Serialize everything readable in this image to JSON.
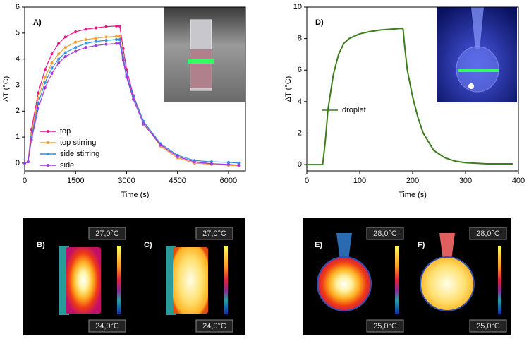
{
  "chart_data": [
    {
      "type": "line",
      "annotation": "A)",
      "x_label": "Time (s)",
      "y_label": "ΔT (°C)",
      "xlim": [
        0,
        6500
      ],
      "xticks": [
        0,
        1500,
        3000,
        4500,
        6000
      ],
      "ylim": [
        -0.3,
        6
      ],
      "yticks": [
        0,
        1,
        2,
        3,
        4,
        5,
        6
      ],
      "markers": true,
      "legend": "lower-left",
      "x": [
        0,
        100,
        200,
        400,
        600,
        800,
        1000,
        1200,
        1500,
        1800,
        2100,
        2400,
        2700,
        2800,
        2900,
        3000,
        3200,
        3500,
        4000,
        4500,
        5000,
        5500,
        6000,
        6300
      ],
      "series": [
        {
          "name": "top",
          "color": "#e8188c",
          "values": [
            0,
            0.05,
            1.3,
            2.7,
            3.6,
            4.2,
            4.6,
            4.85,
            5.05,
            5.15,
            5.2,
            5.25,
            5.27,
            5.27,
            4.4,
            3.6,
            2.6,
            1.6,
            0.7,
            0.25,
            0.05,
            -0.05,
            -0.08,
            -0.1
          ]
        },
        {
          "name": "top stirring",
          "color": "#f5a033",
          "values": [
            0,
            0.05,
            1.1,
            2.5,
            3.3,
            3.85,
            4.2,
            4.45,
            4.65,
            4.75,
            4.8,
            4.85,
            4.87,
            4.87,
            4.1,
            3.4,
            2.5,
            1.55,
            0.65,
            0.2,
            0,
            -0.05,
            -0.08,
            -0.1
          ]
        },
        {
          "name": "side stirring",
          "color": "#2f8fe0",
          "values": [
            0,
            0.05,
            1.0,
            2.3,
            3.1,
            3.65,
            4.0,
            4.25,
            4.45,
            4.6,
            4.68,
            4.72,
            4.75,
            4.75,
            4.05,
            3.4,
            2.55,
            1.6,
            0.75,
            0.3,
            0.1,
            0.05,
            0.03,
            0
          ]
        },
        {
          "name": "side",
          "color": "#a23be0",
          "values": [
            0,
            0.05,
            0.9,
            2.1,
            2.9,
            3.45,
            3.85,
            4.1,
            4.3,
            4.45,
            4.52,
            4.57,
            4.6,
            4.6,
            3.95,
            3.3,
            2.45,
            1.5,
            0.7,
            0.25,
            0.05,
            -0.02,
            -0.05,
            -0.08
          ]
        }
      ]
    },
    {
      "type": "line",
      "annotation": "D)",
      "x_label": "Time (s)",
      "y_label": "ΔT (°C)",
      "xlim": [
        0,
        400
      ],
      "xticks": [
        0,
        100,
        200,
        300,
        400
      ],
      "ylim": [
        -0.4,
        10
      ],
      "yticks": [
        0,
        2,
        4,
        6,
        8,
        10
      ],
      "markers": false,
      "legend": "middle-left",
      "x": [
        0,
        30,
        35,
        40,
        50,
        60,
        70,
        80,
        100,
        120,
        140,
        160,
        180,
        182,
        185,
        190,
        200,
        210,
        220,
        240,
        260,
        280,
        300,
        340,
        390
      ],
      "series": [
        {
          "name": "droplet",
          "color": "#3c7d1e",
          "values": [
            0,
            0,
            1.5,
            3.5,
            5.7,
            7.0,
            7.7,
            8.0,
            8.3,
            8.45,
            8.55,
            8.6,
            8.65,
            8.6,
            7.5,
            6.0,
            4.3,
            3.0,
            2.0,
            0.9,
            0.45,
            0.22,
            0.12,
            0.05,
            0.05
          ]
        }
      ]
    }
  ],
  "thermal_images": [
    {
      "label": "B)",
      "max": "27,0°C",
      "min": "24,0°C",
      "shape": "cuvette"
    },
    {
      "label": "C)",
      "max": "27,0°C",
      "min": "24,0°C",
      "shape": "cuvette"
    },
    {
      "label": "E)",
      "max": "28,0°C",
      "min": "25,0°C",
      "shape": "droplet"
    },
    {
      "label": "F)",
      "max": "28,0°C",
      "min": "25,0°C",
      "shape": "droplet"
    }
  ]
}
